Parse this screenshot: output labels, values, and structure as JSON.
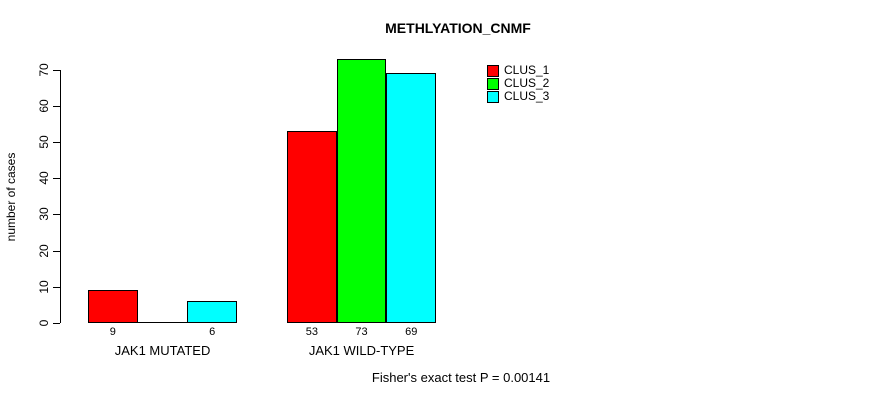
{
  "chart_data": {
    "type": "bar",
    "title": "METHLYATION_CNMF",
    "ylabel": "number of cases",
    "xlabel": "",
    "footer": "Fisher's exact test P = 0.00141",
    "categories": [
      "JAK1 MUTATED",
      "JAK1 WILD-TYPE"
    ],
    "series": [
      {
        "name": "CLUS_1",
        "color": "#ff0000",
        "values": [
          9,
          53
        ]
      },
      {
        "name": "CLUS_2",
        "color": "#00ff00",
        "values": [
          0,
          73
        ]
      },
      {
        "name": "CLUS_3",
        "color": "#00ffff",
        "values": [
          6,
          69
        ]
      }
    ],
    "bar_value_labels": [
      [
        "9",
        "",
        "6"
      ],
      [
        "53",
        "73",
        "69"
      ]
    ],
    "yticks": [
      0,
      10,
      20,
      30,
      40,
      50,
      60,
      70
    ],
    "ylim": [
      0,
      73
    ],
    "grid": false,
    "legend_position": "top-right",
    "axis_color": "#000000",
    "background_color": "#ffffff"
  }
}
